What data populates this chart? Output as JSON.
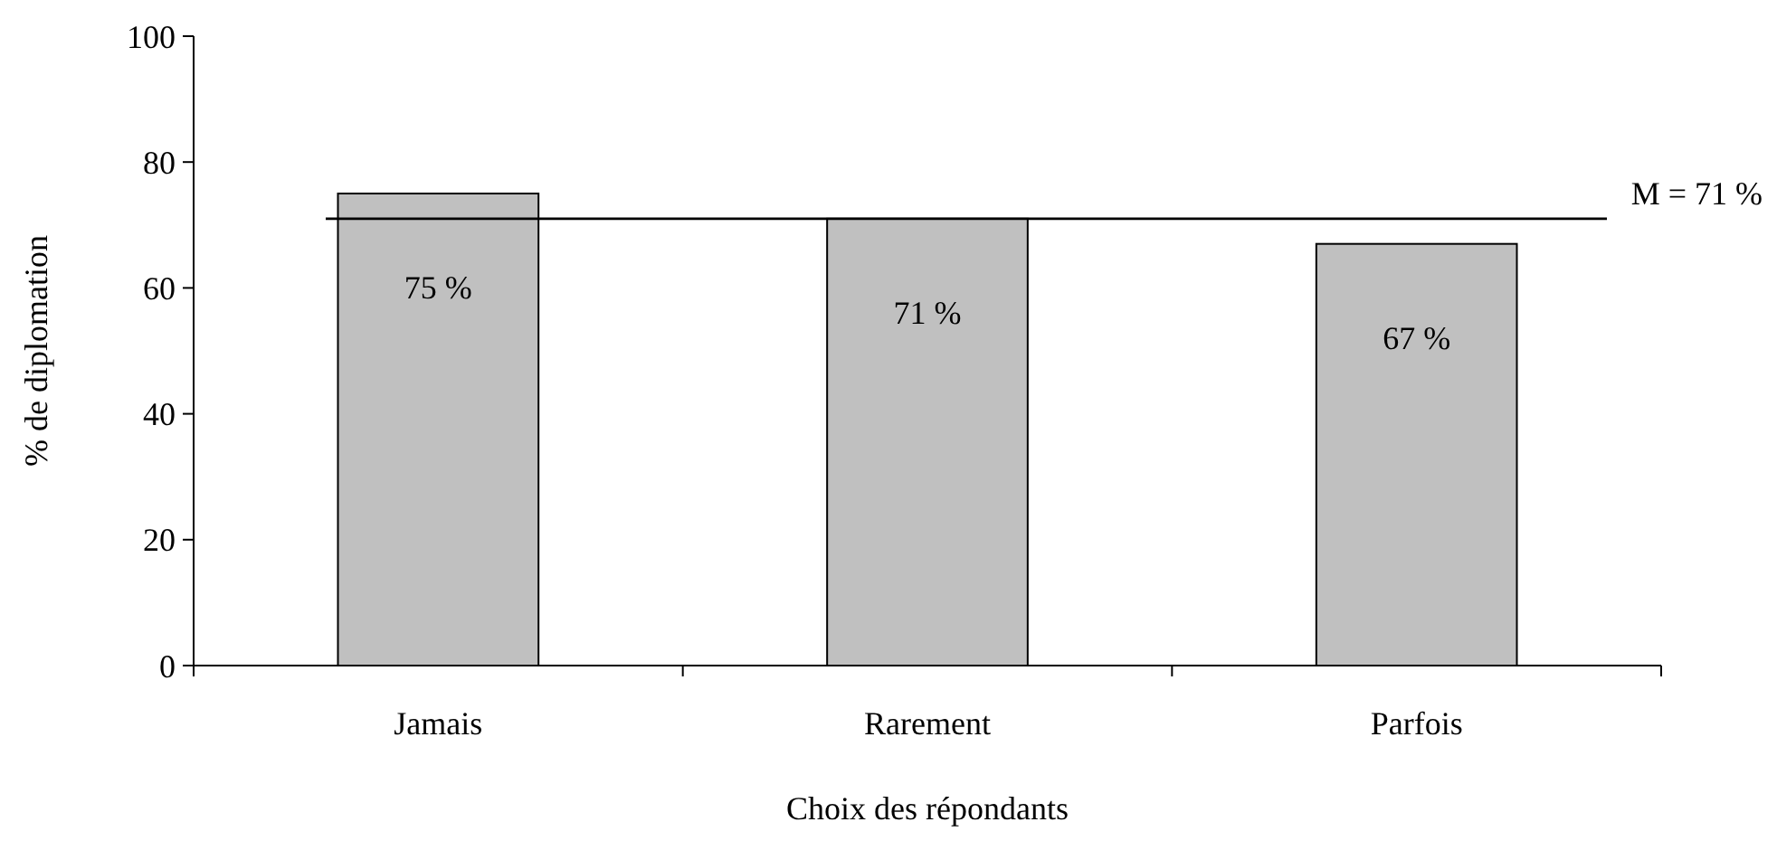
{
  "chart_data": {
    "type": "bar",
    "xlabel": "Choix des répondants",
    "ylabel": "% de diplomation",
    "categories": [
      "Jamais",
      "Rarement",
      "Parfois"
    ],
    "values": [
      75,
      71,
      67
    ],
    "value_labels": [
      "75 %",
      "71 %",
      "67 %"
    ],
    "color": "#c0c0c0",
    "ylim": [
      0,
      100
    ],
    "yticks": [
      0,
      20,
      40,
      60,
      80,
      100
    ],
    "grid": false,
    "ref_lines": [
      {
        "axis": "y",
        "value": 71,
        "label": "M = 71 %",
        "color": "#000000"
      }
    ]
  }
}
